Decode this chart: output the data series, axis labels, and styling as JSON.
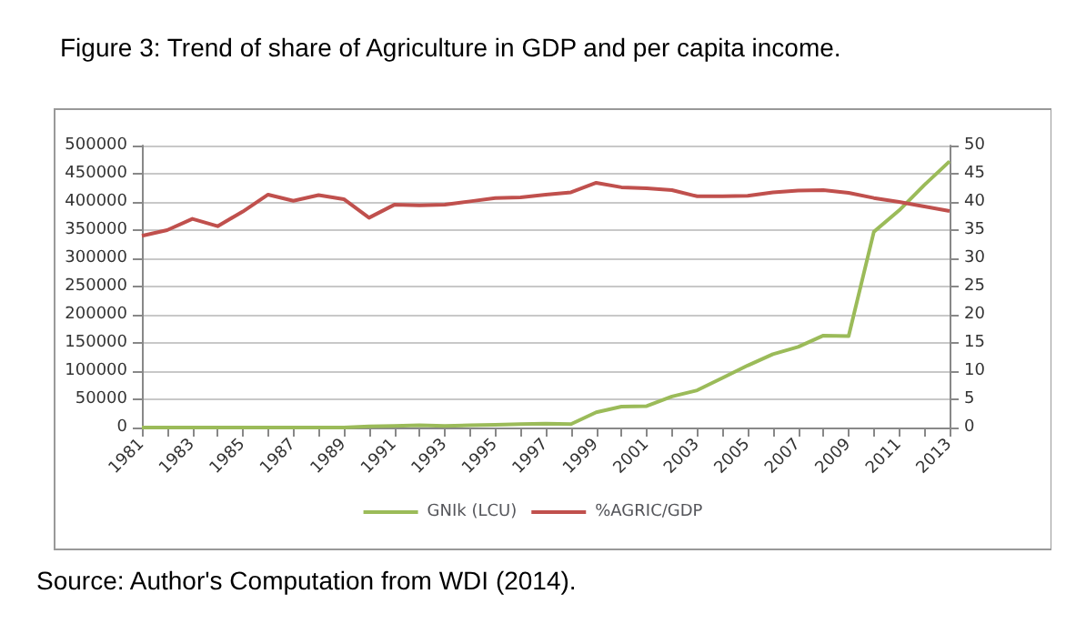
{
  "chart_data": {
    "type": "line",
    "title": "Figure 3: Trend of share of Agriculture in GDP and per capita income.",
    "annotations": [
      "Source: Author's Computation from WDI (2014)."
    ],
    "categories": [
      "1981",
      null,
      "1983",
      null,
      "1985",
      null,
      "1987",
      null,
      "1989",
      null,
      "1991",
      null,
      "1993",
      null,
      "1995",
      null,
      "1997",
      null,
      "1999",
      null,
      "2001",
      null,
      "2003",
      null,
      "2005",
      null,
      "2007",
      null,
      "2009",
      null,
      "2011",
      null,
      "2013"
    ],
    "series": [
      {
        "name": "GNIk (LCU)",
        "color": "#9bbb59",
        "values": [
          0,
          0,
          0,
          0,
          0,
          0,
          0,
          0,
          0,
          2000,
          3000,
          4000,
          3000,
          4000,
          5000,
          6000,
          7000,
          6000,
          27000,
          37000,
          38000,
          55000,
          66000,
          88000,
          110000,
          130000,
          143000,
          163000,
          162000,
          347000,
          385000,
          430000,
          472000
        ]
      },
      {
        "name": "%AGRIC/GDP",
        "color": "#c0504d",
        "axis": "y2",
        "values": [
          34,
          35,
          37,
          35.7,
          38.3,
          41.3,
          40.2,
          41.2,
          40.5,
          37.2,
          39.5,
          39.4,
          39.5,
          40.1,
          40.7,
          40.8,
          41.3,
          41.7,
          43.4,
          42.6,
          42.4,
          42.1,
          41.0,
          41.0,
          41.1,
          41.7,
          42.0,
          42.1,
          41.6,
          40.7,
          40.0,
          39.2,
          38.4
        ]
      }
    ],
    "ylim": [
      0,
      500000
    ],
    "yticks": [
      0,
      50000,
      100000,
      150000,
      200000,
      250000,
      300000,
      350000,
      400000,
      450000,
      500000
    ],
    "y2lim": [
      0,
      50
    ],
    "y2ticks": [
      0,
      5,
      10,
      15,
      20,
      25,
      30,
      35,
      40,
      45,
      50
    ],
    "grid": "y",
    "legend": "bottom",
    "marker": "none",
    "line_style": "solid"
  }
}
